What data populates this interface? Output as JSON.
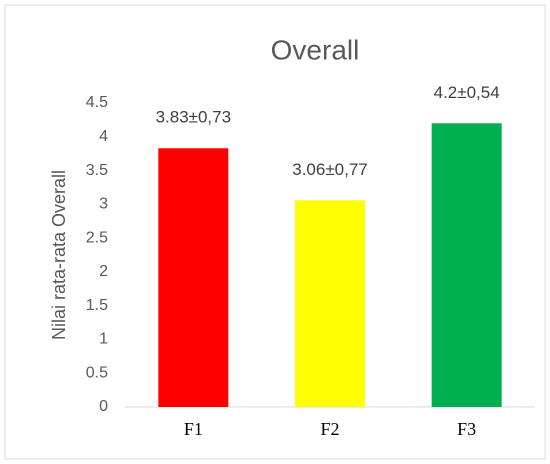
{
  "chart_data": {
    "type": "bar",
    "title": "Overall",
    "y_label": "Nilai rata-rata Overall",
    "categories": [
      "F1",
      "F2",
      "F3"
    ],
    "values": [
      3.83,
      3.06,
      4.2
    ],
    "value_labels": [
      "3.83±0,73",
      "3.06±0,77",
      "4.2±0,54"
    ],
    "colors": [
      "#ff0000",
      "#ffff00",
      "#00b050"
    ],
    "ylim": [
      0,
      4.5
    ],
    "yticks": [
      0,
      0.5,
      1,
      1.5,
      2,
      2.5,
      3,
      3.5,
      4,
      4.5
    ],
    "grid": false
  }
}
